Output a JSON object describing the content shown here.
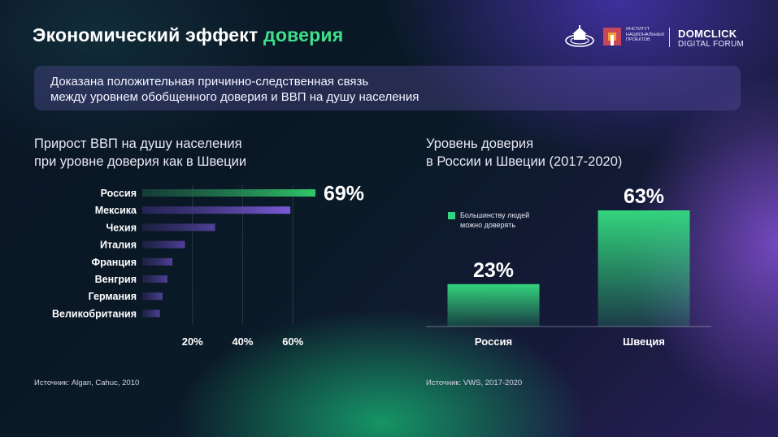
{
  "header": {
    "title_main": "Экономический эффект",
    "title_accent": "доверия"
  },
  "logos": {
    "inp_lines": [
      "ИНСТИТУТ",
      "НАЦИОНАЛЬНЫХ",
      "ПРОЕКТОВ"
    ],
    "domclick": "DOMCLICK",
    "digital_forum": "DIGITAL FORUM"
  },
  "banner": {
    "lines": [
      "Доказана положительная причинно-следственная связь",
      "между уровнем обобщенного доверия и ВВП на душу населения"
    ]
  },
  "left": {
    "subtitle_lines": [
      "Прирост ВВП на душу населения",
      "при уровне доверия как в Швеции"
    ],
    "source": "Источник: Algan, Cahuc, 2010"
  },
  "right": {
    "subtitle_lines": [
      "Уровень доверия",
      "в России и Швеции (2017-2020)"
    ],
    "source": "Источник: VWS, 2017-2020"
  },
  "colors": {
    "accent_green": "#3fe08c",
    "bar_green": "#2fc76a",
    "bar_purple": "#7b5ad6",
    "bar_dim": "#51409a"
  },
  "chart_data": [
    {
      "type": "bar",
      "orientation": "horizontal",
      "categories": [
        "Россия",
        "Мексика",
        "Чехия",
        "Италия",
        "Франция",
        "Венгрия",
        "Германия",
        "Великобритания"
      ],
      "values": [
        69,
        59,
        29,
        17,
        12,
        10,
        8,
        7
      ],
      "x_ticks": [
        "20%",
        "40%",
        "60%"
      ],
      "x_tick_values": [
        20,
        40,
        60
      ],
      "xlim": [
        0,
        75
      ],
      "data_labels": [
        {
          "category": "Россия",
          "text": "69%"
        }
      ],
      "grid": true
    },
    {
      "type": "bar",
      "orientation": "vertical",
      "categories": [
        "Россия",
        "Швеция"
      ],
      "values": [
        23,
        63
      ],
      "data_labels": [
        "23%",
        "63%"
      ],
      "legend": "Большинству людей можно доверять",
      "legend_position": "top-left",
      "ylim": [
        0,
        70
      ]
    }
  ]
}
